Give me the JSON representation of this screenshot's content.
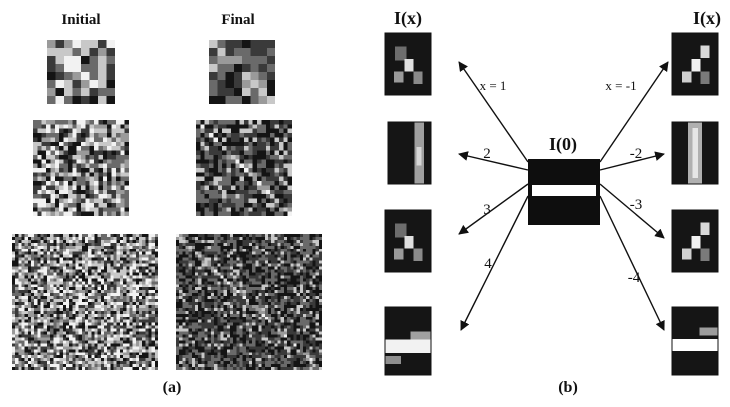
{
  "panel_a": {
    "headers": {
      "initial": "Initial",
      "final": "Final"
    },
    "caption": "(a)"
  },
  "panel_b": {
    "caption": "(b)",
    "center_label": "I(0)",
    "left_header": "I(x)",
    "right_header": "I(x)",
    "left_arrows": [
      "x = 1",
      "2",
      "3",
      "4"
    ],
    "right_arrows": [
      "x = -1",
      "-2",
      "-3",
      "-4"
    ]
  },
  "colors": {
    "ink": "#111111",
    "background": "#ffffff"
  }
}
